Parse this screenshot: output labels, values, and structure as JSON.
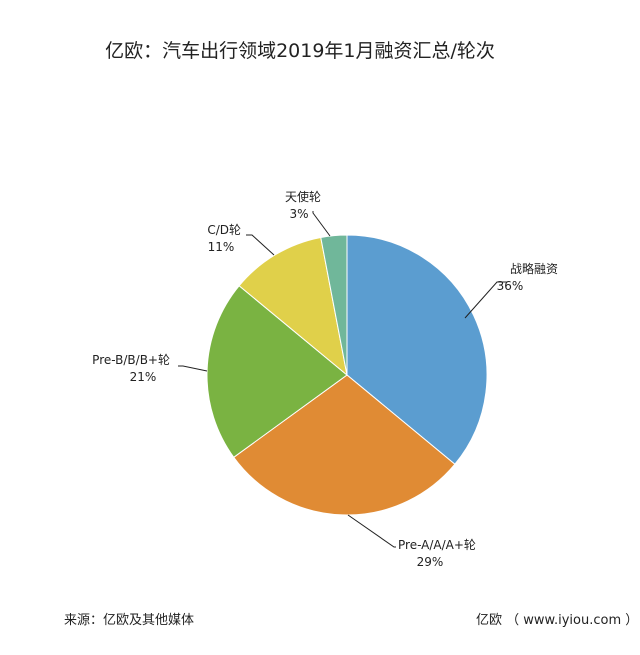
{
  "chart_data": {
    "type": "pie",
    "title": "亿欧：汽车出行领域2019年1月融资汇总/轮次",
    "slices": [
      {
        "name": "战略融资",
        "label": "36%",
        "value": 36,
        "color": "#5b9dd0"
      },
      {
        "name": "Pre-A/A/A+轮",
        "label": "29%",
        "value": 29,
        "color": "#e08b34"
      },
      {
        "name": "Pre-B/B/B+轮",
        "label": "21%",
        "value": 21,
        "color": "#7ab342"
      },
      {
        "name": "C/D轮",
        "label": "11%",
        "value": 11,
        "color": "#e0d04a"
      },
      {
        "name": "天使轮",
        "label": "3%",
        "value": 3,
        "color": "#70b79a"
      }
    ]
  },
  "footer": {
    "source": "来源：亿欧及其他媒体",
    "brand": "亿欧 （ www.iyiou.com ）"
  }
}
